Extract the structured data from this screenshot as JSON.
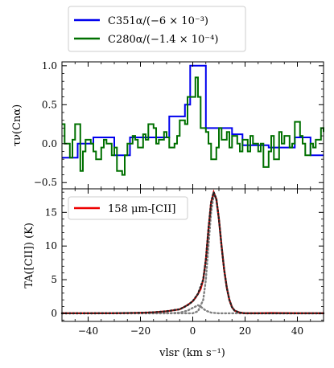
{
  "chart_data": [
    {
      "type": "line",
      "panel": "top",
      "style": "step",
      "ylabel": "τν(Cnα)",
      "xlim": [
        -50,
        50
      ],
      "ylim": [
        -0.58,
        1.05
      ],
      "yticks": [
        -0.5,
        0.0,
        0.5,
        1.0
      ],
      "ytick_labels": [
        "−0.5",
        "0.0",
        "0.5",
        "1.0"
      ],
      "legend": {
        "placement": "above"
      },
      "series": [
        {
          "name": "C351α/(−6 × 10⁻³)",
          "color": "#0000ee",
          "x": [
            -50,
            -44,
            -38,
            -30,
            -24,
            -15,
            -9,
            -3,
            -1,
            1,
            3,
            5,
            9,
            15,
            19,
            25,
            29,
            35,
            39,
            45,
            50
          ],
          "y": [
            -0.18,
            0.0,
            0.08,
            -0.15,
            0.08,
            0.08,
            0.35,
            0.5,
            1.0,
            1.0,
            1.0,
            0.2,
            0.2,
            0.12,
            -0.02,
            -0.02,
            -0.05,
            -0.05,
            0.08,
            -0.15,
            -0.15
          ]
        },
        {
          "name": "C280α/(−1.4 × 10⁻⁴)",
          "color": "#007000",
          "x": [
            -50,
            -49,
            -47,
            -46,
            -45,
            -43,
            -42,
            -41,
            -39,
            -38,
            -37,
            -35,
            -34,
            -33,
            -31,
            -30,
            -29,
            -27,
            -26,
            -25,
            -23,
            -22,
            -21,
            -19,
            -18,
            -17,
            -15,
            -14,
            -13,
            -11,
            -10,
            -9,
            -7,
            -6,
            -5,
            -3,
            -2,
            -1,
            1,
            2,
            3,
            5,
            6,
            7,
            9,
            10,
            11,
            13,
            14,
            15,
            17,
            18,
            19,
            21,
            22,
            23,
            25,
            26,
            27,
            29,
            30,
            31,
            33,
            34,
            35,
            37,
            38,
            39,
            41,
            42,
            43,
            45,
            46,
            47,
            49,
            50
          ],
          "y": [
            0.25,
            0.0,
            -0.18,
            0.05,
            0.25,
            -0.35,
            -0.1,
            0.05,
            0.0,
            -0.1,
            -0.2,
            -0.05,
            0.05,
            0.0,
            -0.15,
            -0.05,
            -0.35,
            -0.4,
            -0.15,
            0.0,
            0.1,
            0.05,
            -0.05,
            0.12,
            0.05,
            0.25,
            0.2,
            0.0,
            0.05,
            0.15,
            0.08,
            -0.05,
            0.0,
            0.1,
            0.3,
            0.25,
            0.6,
            0.6,
            0.85,
            0.6,
            0.2,
            0.15,
            0.0,
            -0.2,
            -0.05,
            0.2,
            0.05,
            0.15,
            -0.05,
            0.1,
            0.0,
            -0.1,
            0.05,
            -0.1,
            0.1,
            0.0,
            -0.1,
            0.0,
            -0.3,
            -0.1,
            0.1,
            -0.2,
            0.15,
            0.0,
            0.1,
            -0.05,
            0.0,
            0.28,
            0.1,
            0.0,
            -0.15,
            0.0,
            -0.05,
            0.05,
            0.2,
            0.15
          ]
        }
      ]
    },
    {
      "type": "line",
      "panel": "bottom",
      "xlabel": "vlsr (km s⁻¹)",
      "ylabel": "TA([CII]) (K)",
      "xlim": [
        -50,
        50
      ],
      "ylim": [
        -1.2,
        18.5
      ],
      "xticks": [
        -40,
        -20,
        0,
        20,
        40
      ],
      "xtick_labels": [
        "−40",
        "−20",
        "0",
        "20",
        "40"
      ],
      "yticks": [
        0,
        5,
        10,
        15
      ],
      "ytick_labels": [
        "0",
        "5",
        "10",
        "15"
      ],
      "legend": {
        "placement": "top-left"
      },
      "series": [
        {
          "name": "158 μm-[CII]",
          "color": "#ee0000",
          "x": [
            -50,
            -40,
            -30,
            -20,
            -15,
            -10,
            -5,
            -3,
            -1,
            0,
            1,
            2,
            3,
            4,
            5,
            6,
            7,
            8,
            9,
            10,
            11,
            12,
            13,
            14,
            15,
            16,
            18,
            20,
            25,
            30,
            40,
            50
          ],
          "y": [
            0.0,
            0.0,
            0.02,
            0.08,
            0.15,
            0.3,
            0.6,
            1.0,
            1.5,
            1.8,
            2.3,
            2.9,
            3.6,
            5.0,
            8.0,
            12.5,
            16.5,
            18.0,
            17.0,
            14.0,
            10.0,
            6.5,
            3.8,
            2.0,
            0.9,
            0.4,
            0.1,
            0.0,
            0.0,
            0.05,
            0.0,
            0.0
          ]
        },
        {
          "name": "",
          "color": "#222222",
          "x": [
            -50,
            -40,
            -30,
            -20,
            -15,
            -10,
            -5,
            -2,
            0,
            2,
            4,
            5,
            6,
            7,
            8,
            9,
            10,
            11,
            12,
            13,
            14,
            15,
            16,
            18,
            20,
            30,
            40,
            50
          ],
          "y": [
            0.0,
            0.0,
            0.02,
            0.08,
            0.15,
            0.3,
            0.6,
            1.2,
            1.8,
            2.9,
            5.0,
            8.0,
            12.5,
            16.5,
            18.0,
            17.0,
            14.0,
            10.0,
            6.5,
            3.8,
            2.0,
            0.9,
            0.4,
            0.1,
            0.0,
            0.0,
            0.0,
            0.0
          ]
        },
        {
          "name": "",
          "color": "#808080",
          "x": [
            -50,
            -10,
            -5,
            -2,
            0,
            1,
            2,
            3,
            4,
            5,
            7,
            10,
            15,
            50
          ],
          "y": [
            0.0,
            0.0,
            0.1,
            0.4,
            0.8,
            1.0,
            1.2,
            1.0,
            0.7,
            0.4,
            0.1,
            0.0,
            0.0,
            0.0
          ]
        },
        {
          "name": "",
          "color": "#808080",
          "x": [
            -50,
            0,
            2,
            4,
            5,
            6,
            7,
            8,
            9,
            10,
            11,
            12,
            13,
            14,
            15,
            16,
            18,
            20,
            50
          ],
          "y": [
            0.0,
            0.0,
            0.3,
            2.0,
            5.0,
            10.0,
            15.0,
            17.5,
            17.0,
            14.0,
            10.0,
            6.5,
            3.8,
            2.0,
            0.9,
            0.4,
            0.1,
            0.0,
            0.0
          ]
        }
      ]
    }
  ]
}
